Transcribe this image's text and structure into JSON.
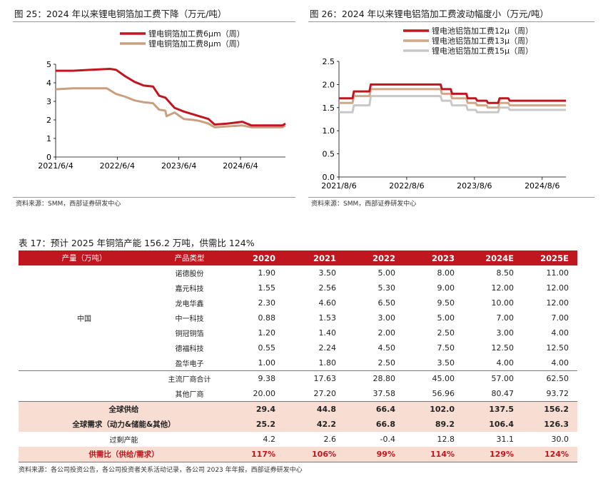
{
  "left_chart": {
    "title": "图 25：2024 年以来锂电铜箔加工费下降（万元/吨）",
    "source": "资料来源：SMM，西部证券研发中心"
  },
  "right_chart": {
    "title": "图 26：2024 年以来锂电铝箔加工费波动幅度小（万元/吨）",
    "source": "资料来源：SMM，西部证券研发中心"
  },
  "chart_data": [
    {
      "type": "line",
      "title": "图 25：2024 年以来锂电铜箔加工费下降（万元/吨）",
      "x_ticks": [
        "2021/6/4",
        "2022/6/4",
        "2023/6/4",
        "2024/6/4"
      ],
      "x_tick_positions": [
        2021.42,
        2022.42,
        2023.42,
        2024.42
      ],
      "xlim": [
        2021.42,
        2025.15
      ],
      "ylim": [
        0,
        5
      ],
      "y_ticks": [
        0,
        1,
        2,
        3,
        4,
        5
      ],
      "legend_position": "top-left",
      "series": [
        {
          "name": "锂电铜箔加工费6μm（周）",
          "color": "#c0161f",
          "x": [
            2021.42,
            2021.7,
            2022.0,
            2022.3,
            2022.4,
            2022.55,
            2022.7,
            2022.85,
            2023.0,
            2023.1,
            2023.2,
            2023.35,
            2023.5,
            2023.65,
            2023.75,
            2023.9,
            2024.0,
            2024.2,
            2024.45,
            2024.6,
            2024.8,
            2025.1,
            2025.15
          ],
          "values": [
            4.65,
            4.65,
            4.7,
            4.75,
            4.7,
            4.35,
            4.05,
            3.85,
            3.8,
            3.3,
            3.2,
            2.65,
            2.45,
            2.3,
            2.2,
            2.05,
            1.75,
            1.8,
            1.9,
            1.7,
            1.7,
            1.7,
            1.8
          ]
        },
        {
          "name": "锂电铜箔加工费8μm（周）",
          "color": "#c8a080",
          "x": [
            2021.42,
            2021.7,
            2022.0,
            2022.25,
            2022.4,
            2022.55,
            2022.7,
            2022.85,
            2023.0,
            2023.1,
            2023.2,
            2023.22,
            2023.35,
            2023.5,
            2023.65,
            2023.75,
            2023.9,
            2024.0,
            2024.2,
            2024.45,
            2024.6,
            2024.8,
            2025.1,
            2025.15
          ],
          "values": [
            3.65,
            3.7,
            3.7,
            3.7,
            3.4,
            3.25,
            3.05,
            2.95,
            2.9,
            2.55,
            2.5,
            2.2,
            2.4,
            2.05,
            2.0,
            1.95,
            1.8,
            1.6,
            1.65,
            1.7,
            1.6,
            1.6,
            1.6,
            1.7
          ]
        }
      ]
    },
    {
      "type": "line",
      "title": "图 26：2024 年以来锂电铝箔加工费波动幅度小（万元/吨）",
      "x_ticks": [
        "2021/8/6",
        "2022/8/6",
        "2023/8/6",
        "2024/8/6"
      ],
      "x_tick_positions": [
        2021.6,
        2022.6,
        2023.6,
        2024.6
      ],
      "xlim": [
        2021.6,
        2024.95
      ],
      "ylim": [
        0,
        2.5
      ],
      "y_ticks": [
        0.0,
        0.5,
        1.0,
        1.5,
        2.0,
        2.5
      ],
      "legend_position": "top-left",
      "series": [
        {
          "name": "锂电池铝箔加工费12μ（周）",
          "color": "#c0161f",
          "x": [
            2021.6,
            2021.8,
            2021.82,
            2022.05,
            2022.07,
            2023.1,
            2023.12,
            2023.25,
            2023.27,
            2023.48,
            2023.5,
            2023.62,
            2023.64,
            2023.78,
            2023.8,
            2023.95,
            2023.97,
            2024.1,
            2024.12,
            2024.95
          ],
          "values": [
            1.7,
            1.7,
            1.85,
            1.85,
            2.0,
            2.0,
            1.9,
            1.9,
            1.8,
            1.8,
            1.7,
            1.7,
            1.65,
            1.65,
            1.6,
            1.6,
            1.7,
            1.7,
            1.65,
            1.65
          ]
        },
        {
          "name": "锂电池铝箔加工费13μ（周）",
          "color": "#d4a688",
          "x": [
            2021.6,
            2021.8,
            2021.82,
            2022.05,
            2022.07,
            2023.1,
            2023.12,
            2023.25,
            2023.27,
            2023.48,
            2023.5,
            2023.62,
            2023.64,
            2023.78,
            2023.8,
            2023.95,
            2023.97,
            2024.1,
            2024.12,
            2024.95
          ],
          "values": [
            1.6,
            1.6,
            1.75,
            1.75,
            1.9,
            1.9,
            1.8,
            1.8,
            1.7,
            1.7,
            1.6,
            1.6,
            1.55,
            1.55,
            1.5,
            1.5,
            1.6,
            1.6,
            1.55,
            1.55
          ]
        },
        {
          "name": "锂电池铝箔加工费15μ（周）",
          "color": "#c8c8c8",
          "x": [
            2021.6,
            2021.8,
            2021.82,
            2022.05,
            2022.07,
            2023.1,
            2023.12,
            2023.25,
            2023.27,
            2023.48,
            2023.5,
            2023.62,
            2023.64,
            2023.78,
            2023.8,
            2023.95,
            2023.97,
            2024.1,
            2024.12,
            2024.95
          ],
          "values": [
            1.4,
            1.4,
            1.55,
            1.55,
            1.75,
            1.75,
            1.65,
            1.65,
            1.55,
            1.55,
            1.45,
            1.45,
            1.4,
            1.4,
            1.4,
            1.4,
            1.5,
            1.5,
            1.45,
            1.45
          ]
        }
      ]
    },
    {
      "type": "table",
      "title": "表 17：预计 2025 年铜箔产能 156.2 万吨，供需比 124%",
      "header": {
        "col0": "产量（万吨）",
        "col1": "产品类型",
        "years": [
          "2020",
          "2021",
          "2022",
          "2023",
          "2024E",
          "2025E"
        ]
      },
      "region": "中国",
      "companies": [
        {
          "name": "诺德股份",
          "values": [
            "1.90",
            "3.50",
            "5.00",
            "8.00",
            "8.50",
            "11.00"
          ]
        },
        {
          "name": "嘉元科技",
          "values": [
            "1.55",
            "2.56",
            "5.30",
            "9.00",
            "12.00",
            "12.00"
          ]
        },
        {
          "name": "龙电华鑫",
          "values": [
            "2.30",
            "4.60",
            "6.50",
            "9.50",
            "10.00",
            "12.00"
          ]
        },
        {
          "name": "中一科技",
          "values": [
            "0.88",
            "1.53",
            "3.00",
            "5.00",
            "7.00",
            "7.00"
          ]
        },
        {
          "name": "铜冠铜箔",
          "values": [
            "1.20",
            "1.40",
            "2.00",
            "2.50",
            "3.00",
            "4.00"
          ]
        },
        {
          "name": "德福科技",
          "values": [
            "0.55",
            "2.24",
            "4.50",
            "7.50",
            "12.50",
            "12.50"
          ]
        },
        {
          "name": "盈华电子",
          "values": [
            "1.00",
            "1.80",
            "2.50",
            "3.50",
            "4.00",
            "4.00"
          ]
        }
      ],
      "subtotals": [
        {
          "name": "主流厂商合计",
          "values": [
            "9.38",
            "17.63",
            "28.80",
            "45.00",
            "57.00",
            "62.50"
          ]
        },
        {
          "name": "其他厂商",
          "values": [
            "20.00",
            "27.20",
            "37.58",
            "56.96",
            "80.47",
            "93.72"
          ]
        }
      ],
      "global_supply": {
        "name": "全球供给",
        "values": [
          "29.4",
          "44.8",
          "66.4",
          "102.0",
          "137.5",
          "156.2"
        ]
      },
      "global_demand": {
        "name": "全球需求（动力&储能&其他）",
        "values": [
          "25.2",
          "42.2",
          "66.8",
          "89.2",
          "106.4",
          "126.3"
        ]
      },
      "excess_capacity": {
        "name": "过剩产能",
        "values": [
          "4.2",
          "2.6",
          "-0.4",
          "12.8",
          "31.1",
          "30.0"
        ]
      },
      "supply_demand_ratio": {
        "name": "供需比（供给/需求）",
        "values": [
          "117%",
          "106%",
          "99%",
          "114%",
          "129%",
          "124%"
        ]
      },
      "source": "资料来源：各公司投资公告，各公司投资者关系活动记录，各公司 2023 年年报，西部证券研发中心"
    }
  ]
}
